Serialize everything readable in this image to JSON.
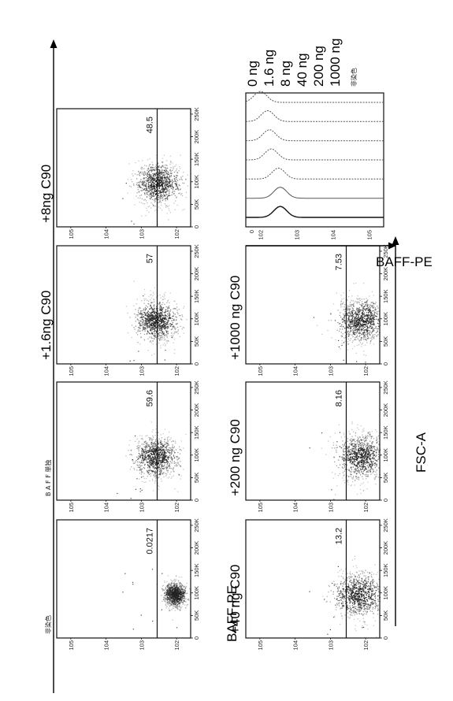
{
  "figure": {
    "y_axis_title": "BAFF-PE",
    "x_axis_title": "FSC-A"
  },
  "chart_data": [
    {
      "type": "scatter",
      "panel": "flow-dotplots",
      "xlabel": "FSC-A",
      "ylabel": "BAFF-PE",
      "x_ticks": [
        "0",
        "50K",
        "100K",
        "150K",
        "200K",
        "250K"
      ],
      "y_ticks": [
        "10^2",
        "10^3",
        "10^4",
        "10^5"
      ],
      "xlim": [
        0,
        262144
      ],
      "y_scale": "log",
      "plots": [
        {
          "condition": "非染色",
          "gate_percent": "0.0217",
          "center_fsc": 95000,
          "center_log_pe": 2.05,
          "spread_fsc": 14000,
          "spread_log_pe": 0.22
        },
        {
          "condition": "B A F F 単独",
          "gate_percent": "59.6",
          "center_fsc": 95000,
          "center_log_pe": 2.6,
          "spread_fsc": 24000,
          "spread_log_pe": 0.42
        },
        {
          "condition": "+1.6ng C90",
          "gate_percent": "57",
          "center_fsc": 95000,
          "center_log_pe": 2.58,
          "spread_fsc": 24000,
          "spread_log_pe": 0.42
        },
        {
          "condition": "+8ng C90",
          "gate_percent": "48.5",
          "center_fsc": 95000,
          "center_log_pe": 2.52,
          "spread_fsc": 24000,
          "spread_log_pe": 0.42
        },
        {
          "condition": "+40 ng C90",
          "gate_percent": "13.2",
          "center_fsc": 95000,
          "center_log_pe": 2.2,
          "spread_fsc": 26000,
          "spread_log_pe": 0.48
        },
        {
          "condition": "+200 ng C90",
          "gate_percent": "8.16",
          "center_fsc": 95000,
          "center_log_pe": 2.15,
          "spread_fsc": 26000,
          "spread_log_pe": 0.48
        },
        {
          "condition": "+1000 ng C90",
          "gate_percent": "7.53",
          "center_fsc": 95000,
          "center_log_pe": 2.12,
          "spread_fsc": 26000,
          "spread_log_pe": 0.48
        }
      ]
    },
    {
      "type": "line",
      "panel": "histogram-overlay",
      "xlabel": "BAFF-PE",
      "x_ticks": [
        "0",
        "10^2",
        "10^3",
        "10^4",
        "10^5"
      ],
      "x_scale": "log",
      "series": [
        {
          "name": "0 ng",
          "peak_log_pe": 2.55
        },
        {
          "name": "1.6 ng",
          "peak_log_pe": 2.55
        },
        {
          "name": "8 ng",
          "peak_log_pe": 2.5
        },
        {
          "name": "40 ng",
          "peak_log_pe": 2.3
        },
        {
          "name": "200 ng",
          "peak_log_pe": 2.25
        },
        {
          "name": "1000 ng",
          "peak_log_pe": 2.2
        },
        {
          "name": "非染色",
          "peak_log_pe": 2.0
        }
      ]
    }
  ]
}
